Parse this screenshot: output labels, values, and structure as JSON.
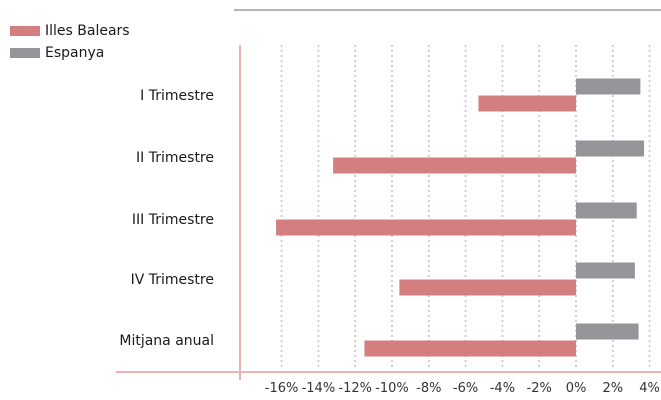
{
  "chart_data": {
    "type": "bar",
    "orientation": "horizontal",
    "categories": [
      "I Trimestre",
      "II Trimestre",
      "III Trimestre",
      "IV Trimestre",
      "Mitjana anual"
    ],
    "series": [
      {
        "name": "Illes Balears",
        "color": "#d47f7f",
        "values": [
          -5.3,
          -13.2,
          -16.3,
          -9.6,
          -11.5
        ]
      },
      {
        "name": "Espanya",
        "color": "#959599",
        "values": [
          3.5,
          3.7,
          3.3,
          3.2,
          3.4
        ]
      }
    ],
    "x_ticks": [
      -16,
      -14,
      -12,
      -10,
      -8,
      -6,
      -4,
      -2,
      0,
      2,
      4
    ],
    "x_tick_labels": [
      "-16%",
      "-14%",
      "-12%",
      "-10%",
      "-8%",
      "-6%",
      "-4%",
      "-2%",
      "0%",
      "2%",
      "4%"
    ],
    "xlim": [
      -18,
      4.5
    ],
    "grid": true,
    "legend_position": "top-left",
    "title": "",
    "xlabel": "",
    "ylabel": ""
  },
  "legend": {
    "items": [
      {
        "label": "Illes Balears",
        "color": "#d47f7f"
      },
      {
        "label": "Espanya",
        "color": "#959599"
      }
    ]
  }
}
